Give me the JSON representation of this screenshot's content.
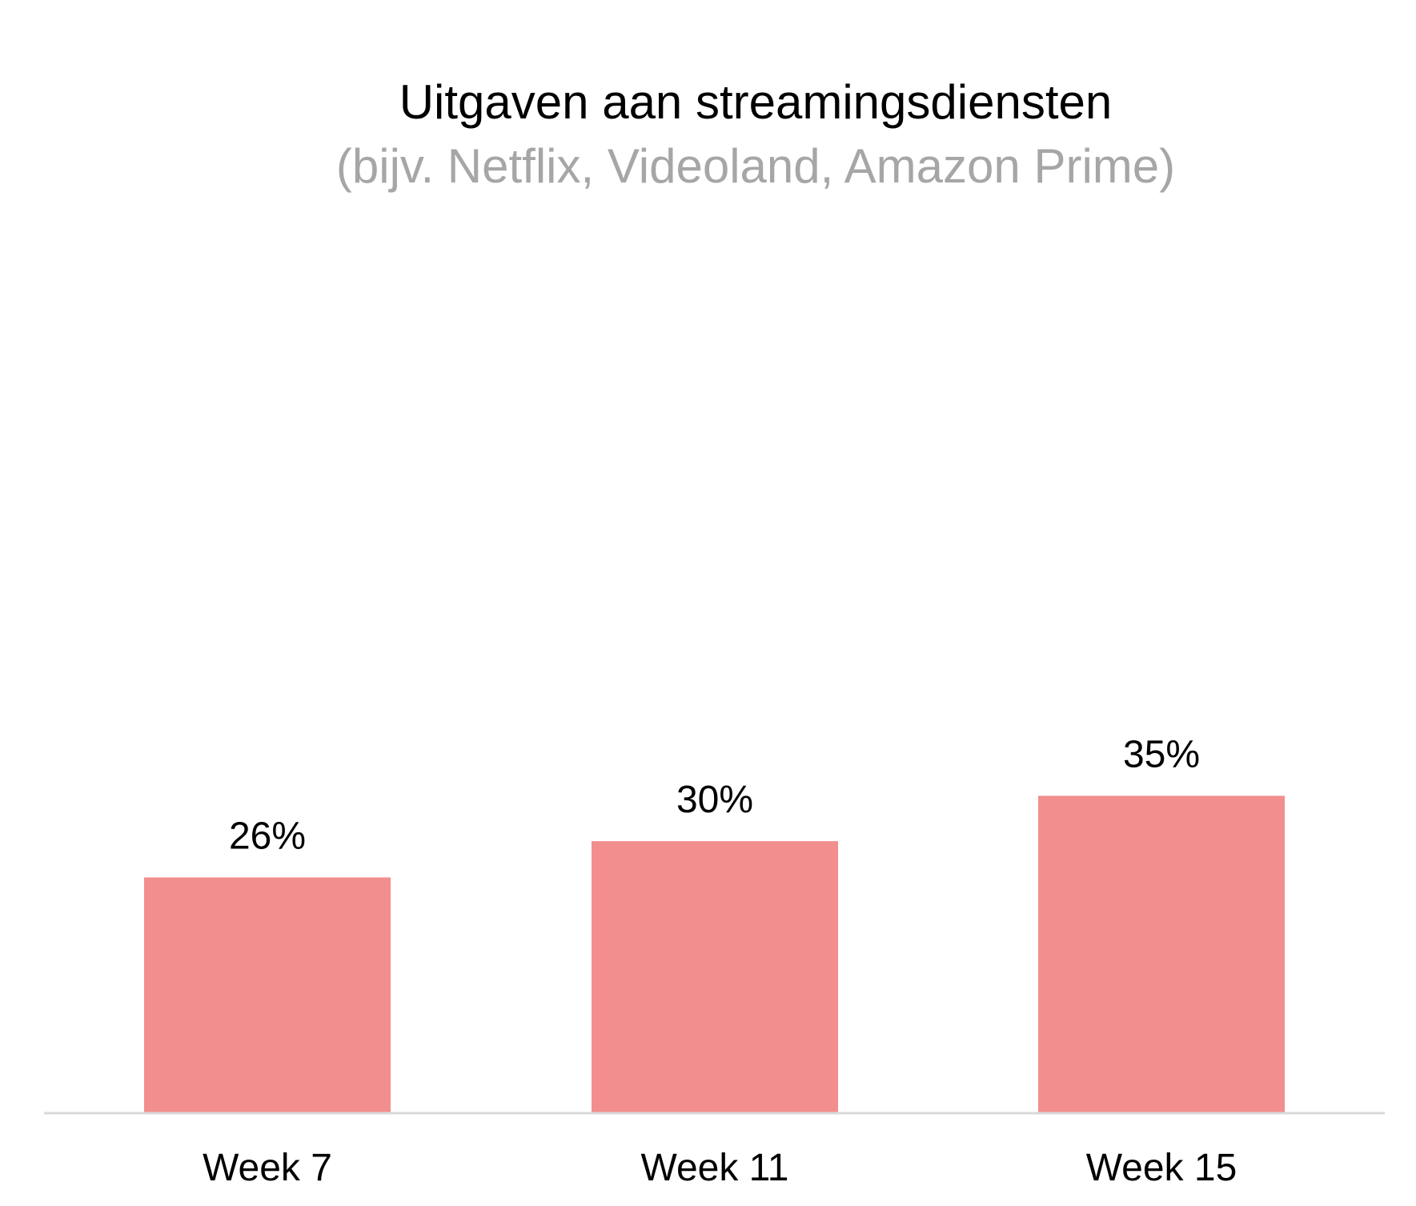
{
  "chart_data": {
    "type": "bar",
    "title": "Uitgaven aan streamingsdiensten",
    "subtitle": "(bijv. Netflix, Videoland, Amazon Prime)",
    "categories": [
      "Week 7",
      "Week 11",
      "Week 15"
    ],
    "values": [
      26,
      30,
      35
    ],
    "value_labels": [
      "26%",
      "30%",
      "35%"
    ],
    "ylim": [
      0,
      100
    ],
    "grid": false,
    "legend": "none",
    "colors": {
      "bar": "#f28e8e",
      "axis": "#d9d9d9",
      "title": "#000000",
      "subtitle": "#a6a6a6",
      "label": "#000000"
    }
  }
}
